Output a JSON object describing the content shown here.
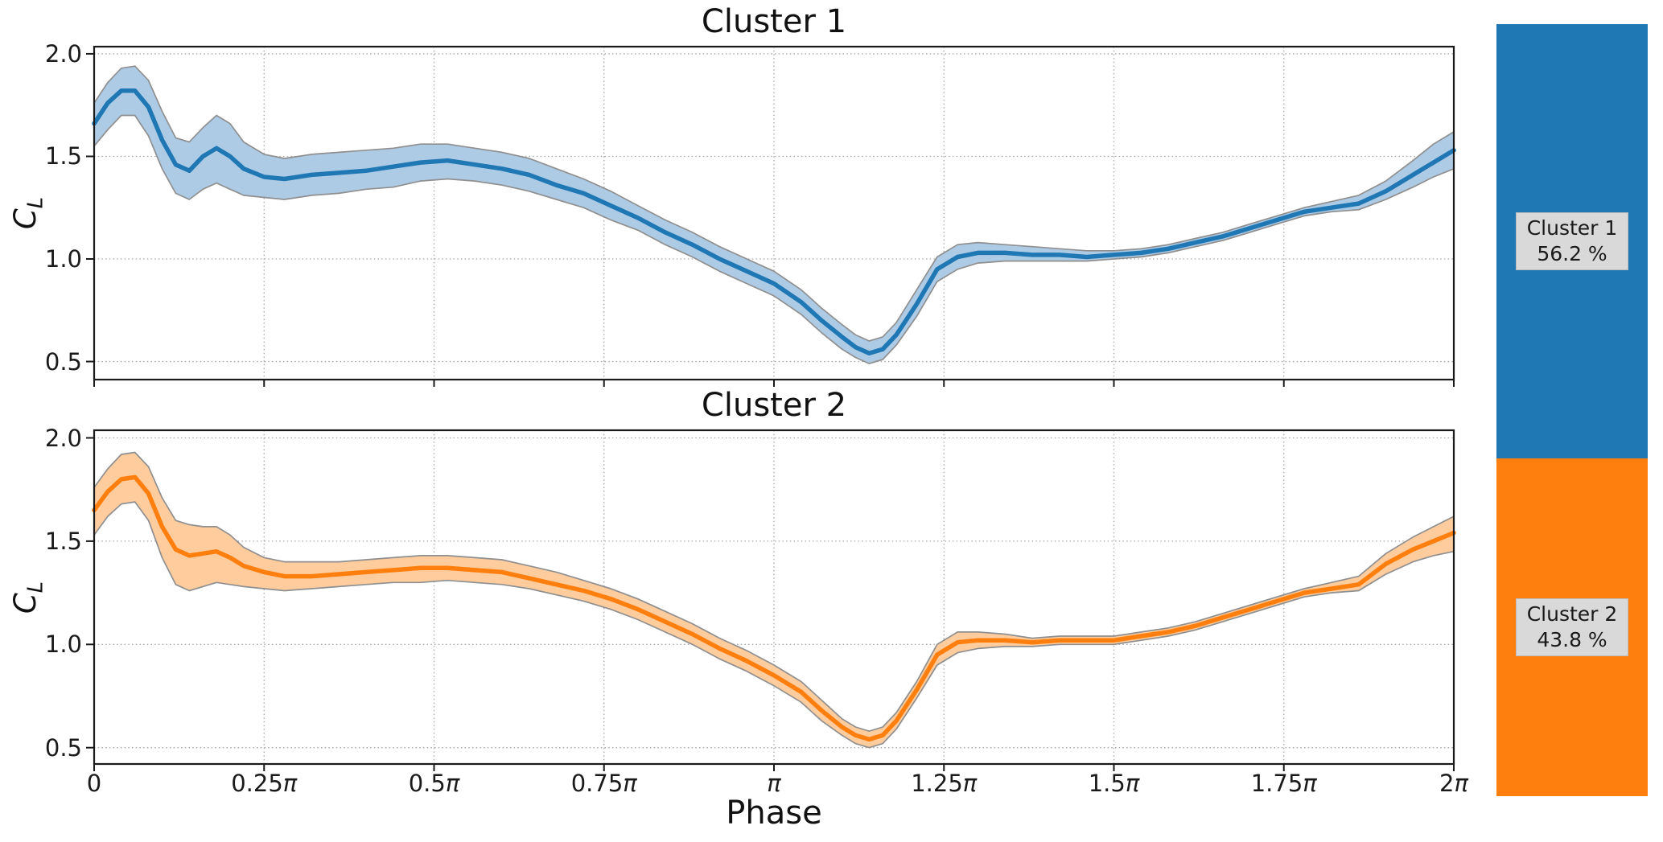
{
  "figure": {
    "background": "#ffffff"
  },
  "chart_data": {
    "type": "line",
    "xlabel": "Phase",
    "ylabel_base": "C",
    "ylabel_subscript": "L",
    "xlim_pi": [
      0,
      2
    ],
    "grid": true,
    "grid_color": "#a6a6a6",
    "spine_color": "#1a1a1a",
    "x_ticks": [
      {
        "v": 0.0,
        "label": "0"
      },
      {
        "v": 0.25,
        "label": "0.25π"
      },
      {
        "v": 0.5,
        "label": "0.5π"
      },
      {
        "v": 0.75,
        "label": "0.75π"
      },
      {
        "v": 1.0,
        "label": "π"
      },
      {
        "v": 1.25,
        "label": "1.25π"
      },
      {
        "v": 1.5,
        "label": "1.5π"
      },
      {
        "v": 1.75,
        "label": "1.75π"
      },
      {
        "v": 2.0,
        "label": "2π"
      }
    ],
    "y_ticks": [
      {
        "v": 2.0,
        "label": "2.0"
      },
      {
        "v": 1.5,
        "label": "1.5"
      },
      {
        "v": 1.0,
        "label": "1.0"
      },
      {
        "v": 0.5,
        "label": "0.5"
      }
    ],
    "x_pi": [
      0,
      0.02,
      0.04,
      0.06,
      0.08,
      0.1,
      0.12,
      0.14,
      0.16,
      0.18,
      0.2,
      0.22,
      0.25,
      0.28,
      0.32,
      0.36,
      0.4,
      0.44,
      0.48,
      0.52,
      0.56,
      0.6,
      0.64,
      0.68,
      0.72,
      0.76,
      0.8,
      0.84,
      0.88,
      0.92,
      0.96,
      1.0,
      1.04,
      1.07,
      1.1,
      1.12,
      1.14,
      1.16,
      1.18,
      1.21,
      1.24,
      1.27,
      1.3,
      1.34,
      1.38,
      1.42,
      1.46,
      1.5,
      1.54,
      1.58,
      1.62,
      1.66,
      1.7,
      1.74,
      1.78,
      1.82,
      1.86,
      1.9,
      1.94,
      1.97,
      2.0
    ],
    "subplots": [
      {
        "title": "Cluster 1",
        "line_color": "#1f77b4",
        "band_color": "#aecbe6",
        "band_edge_color": "#8f8f8f",
        "ylim": [
          0.412,
          2.035
        ],
        "mean": [
          1.66,
          1.76,
          1.82,
          1.82,
          1.74,
          1.58,
          1.46,
          1.43,
          1.5,
          1.54,
          1.5,
          1.44,
          1.4,
          1.39,
          1.41,
          1.42,
          1.43,
          1.45,
          1.47,
          1.48,
          1.46,
          1.44,
          1.41,
          1.36,
          1.32,
          1.26,
          1.2,
          1.13,
          1.07,
          1.0,
          0.94,
          0.88,
          0.79,
          0.7,
          0.62,
          0.57,
          0.54,
          0.56,
          0.63,
          0.78,
          0.95,
          1.01,
          1.03,
          1.03,
          1.02,
          1.02,
          1.01,
          1.02,
          1.03,
          1.05,
          1.08,
          1.11,
          1.15,
          1.19,
          1.23,
          1.25,
          1.27,
          1.33,
          1.41,
          1.47,
          1.53
        ],
        "band_low": [
          1.55,
          1.63,
          1.7,
          1.7,
          1.6,
          1.44,
          1.32,
          1.29,
          1.34,
          1.37,
          1.34,
          1.31,
          1.3,
          1.29,
          1.31,
          1.32,
          1.34,
          1.35,
          1.38,
          1.39,
          1.38,
          1.36,
          1.33,
          1.29,
          1.25,
          1.19,
          1.14,
          1.07,
          1.01,
          0.94,
          0.88,
          0.82,
          0.73,
          0.64,
          0.56,
          0.52,
          0.49,
          0.51,
          0.58,
          0.72,
          0.89,
          0.95,
          0.98,
          0.99,
          0.99,
          0.99,
          0.99,
          1.0,
          1.01,
          1.03,
          1.06,
          1.09,
          1.13,
          1.17,
          1.21,
          1.23,
          1.24,
          1.29,
          1.35,
          1.4,
          1.44
        ],
        "band_high": [
          1.76,
          1.86,
          1.93,
          1.94,
          1.87,
          1.72,
          1.59,
          1.57,
          1.64,
          1.7,
          1.66,
          1.57,
          1.51,
          1.49,
          1.51,
          1.52,
          1.53,
          1.54,
          1.56,
          1.56,
          1.54,
          1.52,
          1.49,
          1.44,
          1.39,
          1.33,
          1.26,
          1.19,
          1.13,
          1.06,
          1.0,
          0.94,
          0.85,
          0.76,
          0.68,
          0.63,
          0.6,
          0.62,
          0.69,
          0.85,
          1.01,
          1.07,
          1.08,
          1.07,
          1.06,
          1.05,
          1.04,
          1.04,
          1.05,
          1.07,
          1.1,
          1.13,
          1.17,
          1.21,
          1.25,
          1.28,
          1.31,
          1.38,
          1.48,
          1.56,
          1.62
        ]
      },
      {
        "title": "Cluster 2",
        "line_color": "#ff7f0e",
        "band_color": "#ffcc9e",
        "band_edge_color": "#8f8f8f",
        "ylim": [
          0.421,
          2.037
        ],
        "mean": [
          1.65,
          1.74,
          1.8,
          1.81,
          1.73,
          1.57,
          1.46,
          1.43,
          1.44,
          1.45,
          1.42,
          1.38,
          1.35,
          1.33,
          1.33,
          1.34,
          1.35,
          1.36,
          1.37,
          1.37,
          1.36,
          1.35,
          1.32,
          1.29,
          1.26,
          1.22,
          1.17,
          1.11,
          1.05,
          0.98,
          0.92,
          0.85,
          0.77,
          0.68,
          0.6,
          0.56,
          0.54,
          0.56,
          0.63,
          0.78,
          0.95,
          1.01,
          1.02,
          1.02,
          1.01,
          1.02,
          1.02,
          1.02,
          1.04,
          1.06,
          1.09,
          1.13,
          1.17,
          1.21,
          1.25,
          1.27,
          1.29,
          1.39,
          1.46,
          1.5,
          1.54
        ],
        "band_low": [
          1.53,
          1.62,
          1.68,
          1.69,
          1.6,
          1.42,
          1.29,
          1.26,
          1.28,
          1.3,
          1.29,
          1.28,
          1.27,
          1.26,
          1.27,
          1.28,
          1.29,
          1.3,
          1.3,
          1.31,
          1.3,
          1.29,
          1.27,
          1.24,
          1.21,
          1.17,
          1.12,
          1.06,
          1.0,
          0.93,
          0.87,
          0.8,
          0.72,
          0.63,
          0.56,
          0.52,
          0.5,
          0.52,
          0.59,
          0.74,
          0.9,
          0.96,
          0.98,
          0.99,
          0.99,
          1.0,
          1.0,
          1.0,
          1.02,
          1.04,
          1.07,
          1.11,
          1.15,
          1.19,
          1.23,
          1.25,
          1.26,
          1.34,
          1.4,
          1.43,
          1.45
        ],
        "band_high": [
          1.76,
          1.85,
          1.92,
          1.93,
          1.86,
          1.71,
          1.6,
          1.58,
          1.57,
          1.57,
          1.53,
          1.47,
          1.42,
          1.4,
          1.4,
          1.4,
          1.41,
          1.42,
          1.43,
          1.43,
          1.42,
          1.41,
          1.38,
          1.35,
          1.31,
          1.27,
          1.22,
          1.16,
          1.1,
          1.03,
          0.97,
          0.9,
          0.82,
          0.73,
          0.64,
          0.6,
          0.58,
          0.6,
          0.67,
          0.82,
          1.0,
          1.06,
          1.06,
          1.05,
          1.03,
          1.04,
          1.04,
          1.04,
          1.06,
          1.08,
          1.11,
          1.15,
          1.19,
          1.23,
          1.27,
          1.3,
          1.33,
          1.44,
          1.52,
          1.57,
          1.62
        ]
      }
    ]
  },
  "proportion_bar": {
    "label_box_bg": "#d9d9d9",
    "label_box_border": "#bcbcbc",
    "segments": [
      {
        "name": "Cluster 1",
        "percent": "56.2 %",
        "value_percent": 56.2,
        "color": "#1f77b4"
      },
      {
        "name": "Cluster 2",
        "percent": "43.8 %",
        "value_percent": 43.8,
        "color": "#ff7f0e"
      }
    ]
  }
}
